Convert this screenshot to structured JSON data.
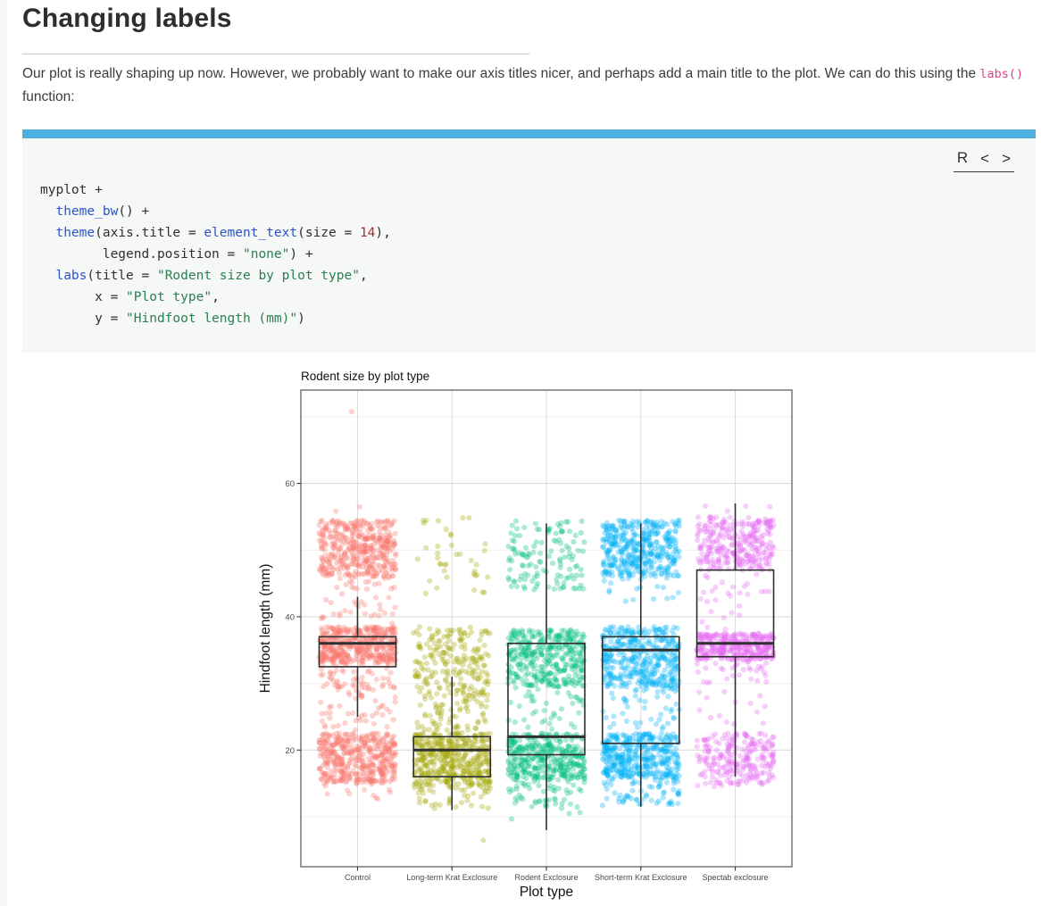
{
  "page": {
    "heading": "Changing labels",
    "paragraph": {
      "before": "Our plot is really shaping up now. However, we probably want to make our axis titles nicer, and perhaps add a main title to the plot. We can do this using the ",
      "code": "labs()",
      "after": " function:"
    }
  },
  "colors": {
    "accent_bar": "#4cb1e0",
    "inline_code": "#e83e8c",
    "token_keyword": "#2b55c9",
    "token_string": "#2a7f4f",
    "token_number": "#a82b2b",
    "token_plain": "#2f2f2f"
  },
  "code_block": {
    "lang_label": "R",
    "prev_icon": "<",
    "next_icon": ">",
    "lines": [
      [
        [
          "p",
          "myplot +"
        ]
      ],
      [
        [
          "p",
          "  "
        ],
        [
          "k",
          "theme_bw"
        ],
        [
          "p",
          "() +"
        ]
      ],
      [
        [
          "p",
          "  "
        ],
        [
          "k",
          "theme"
        ],
        [
          "p",
          "(axis.title = "
        ],
        [
          "k",
          "element_text"
        ],
        [
          "p",
          "(size = "
        ],
        [
          "n",
          "14"
        ],
        [
          "p",
          "),"
        ]
      ],
      [
        [
          "p",
          "        legend.position = "
        ],
        [
          "s",
          "\"none\""
        ],
        [
          "p",
          ") +"
        ]
      ],
      [
        [
          "p",
          "  "
        ],
        [
          "k",
          "labs"
        ],
        [
          "p",
          "(title = "
        ],
        [
          "s",
          "\"Rodent size by plot type\""
        ],
        [
          "p",
          ","
        ]
      ],
      [
        [
          "p",
          "       x = "
        ],
        [
          "s",
          "\"Plot type\""
        ],
        [
          "p",
          ","
        ]
      ],
      [
        [
          "p",
          "       y = "
        ],
        [
          "s",
          "\"Hindfoot length (mm)\""
        ],
        [
          "p",
          ")"
        ]
      ]
    ]
  },
  "chart_data": {
    "type": "boxplot+jitter",
    "title": "Rodent size by plot type",
    "xlabel": "Plot type",
    "ylabel": "Hindfoot length (mm)",
    "ylim": [
      2.5,
      74
    ],
    "yticks_major": [
      20,
      40,
      60
    ],
    "yticks_minor": [
      10,
      30,
      50,
      70
    ],
    "grid": true,
    "legend": "none",
    "theme": "bw",
    "categories": [
      "Control",
      "Long-term Krat Exclosure",
      "Rodent Exclosure",
      "Short-term Krat Exclosure",
      "Spectab exclosure"
    ],
    "series": [
      {
        "name": "Control",
        "color": "#F8766D",
        "box": {
          "lower": 25,
          "q1": 32.5,
          "median": 36,
          "q3": 37,
          "upper": 43
        },
        "point_clusters": [
          {
            "from": 46,
            "to": 54.5,
            "n": 420
          },
          {
            "from": 44,
            "to": 46,
            "n": 18
          },
          {
            "from": 38.7,
            "to": 43.5,
            "n": 28
          },
          {
            "from": 33,
            "to": 38.5,
            "n": 420
          },
          {
            "from": 29,
            "to": 33,
            "n": 60
          },
          {
            "from": 25.5,
            "to": 29,
            "n": 25
          },
          {
            "from": 22.5,
            "to": 25.5,
            "n": 22
          },
          {
            "from": 15,
            "to": 22.5,
            "n": 430
          },
          {
            "from": 12.5,
            "to": 15,
            "n": 12
          },
          {
            "from": 55.5,
            "to": 57,
            "n": 2
          },
          {
            "from": 70.3,
            "to": 70.8,
            "n": 1
          }
        ]
      },
      {
        "name": "Long-term Krat Exclosure",
        "color": "#A3A500",
        "box": {
          "lower": 11,
          "q1": 16,
          "median": 20,
          "q3": 22,
          "upper": 31
        },
        "point_clusters": [
          {
            "from": 43,
            "to": 55,
            "n": 38
          },
          {
            "from": 28,
            "to": 38.5,
            "n": 210
          },
          {
            "from": 22.5,
            "to": 28,
            "n": 70
          },
          {
            "from": 14.5,
            "to": 22.5,
            "n": 430
          },
          {
            "from": 11,
            "to": 14.5,
            "n": 40
          },
          {
            "from": 6.3,
            "to": 6.7,
            "n": 1
          }
        ]
      },
      {
        "name": "Rodent Exclosure",
        "color": "#00BF7C",
        "box": {
          "lower": 8,
          "q1": 19.3,
          "median": 22,
          "q3": 36,
          "upper": 54
        },
        "point_clusters": [
          {
            "from": 44,
            "to": 54.5,
            "n": 130
          },
          {
            "from": 29.5,
            "to": 38,
            "n": 360
          },
          {
            "from": 23,
            "to": 29.5,
            "n": 40
          },
          {
            "from": 15.5,
            "to": 22.5,
            "n": 360
          },
          {
            "from": 12,
            "to": 15.5,
            "n": 45
          },
          {
            "from": 9.5,
            "to": 12,
            "n": 12
          }
        ]
      },
      {
        "name": "Short-term Krat Exclosure",
        "color": "#00B0F6",
        "box": {
          "lower": 11.5,
          "q1": 21,
          "median": 35,
          "q3": 37,
          "upper": 54
        },
        "point_clusters": [
          {
            "from": 46,
            "to": 54.5,
            "n": 400
          },
          {
            "from": 42,
            "to": 46,
            "n": 18
          },
          {
            "from": 29.5,
            "to": 38.5,
            "n": 400
          },
          {
            "from": 23,
            "to": 29.5,
            "n": 50
          },
          {
            "from": 15.5,
            "to": 22.5,
            "n": 400
          },
          {
            "from": 11.5,
            "to": 15.5,
            "n": 55
          },
          {
            "from": 12.5,
            "to": 13.5,
            "n": 5
          }
        ]
      },
      {
        "name": "Spectab exclosure",
        "color": "#E76BF3",
        "box": {
          "lower": 16,
          "q1": 34,
          "median": 36,
          "q3": 47,
          "upper": 57
        },
        "point_clusters": [
          {
            "from": 47,
            "to": 55,
            "n": 290
          },
          {
            "from": 55.5,
            "to": 57,
            "n": 4
          },
          {
            "from": 38,
            "to": 46.5,
            "n": 28
          },
          {
            "from": 33.5,
            "to": 37.5,
            "n": 340
          },
          {
            "from": 30,
            "to": 33.5,
            "n": 30
          },
          {
            "from": 23,
            "to": 29,
            "n": 14
          },
          {
            "from": 17.5,
            "to": 22.5,
            "n": 160
          },
          {
            "from": 14.5,
            "to": 17.5,
            "n": 75
          }
        ]
      }
    ]
  }
}
